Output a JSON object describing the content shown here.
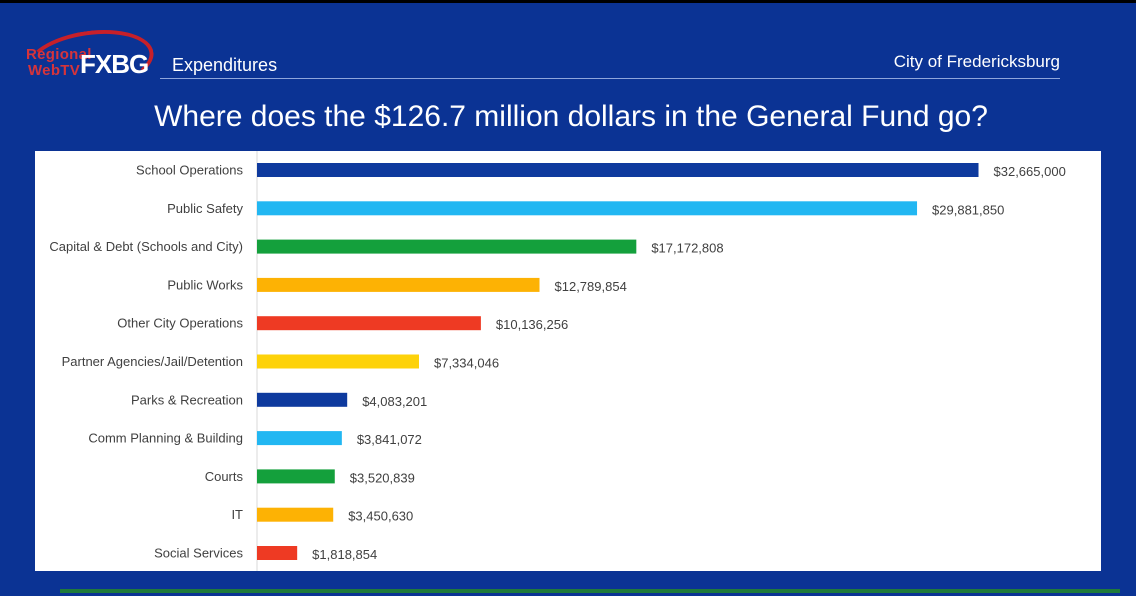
{
  "header": {
    "logo_line1": "Regional",
    "logo_line2": "WebTV",
    "logo_main": "FXBG",
    "section": "Expenditures",
    "city": "City of Fredericksburg"
  },
  "title": "Where does the $126.7 million dollars in the General Fund go?",
  "chart_data": {
    "type": "bar",
    "orientation": "horizontal",
    "title": "Where does the $126.7 million dollars in the General Fund go?",
    "xlabel": "",
    "ylabel": "",
    "grid": false,
    "legend": "none",
    "xlim": [
      0,
      34000000
    ],
    "categories": [
      "School Operations",
      "Public Safety",
      "Capital & Debt (Schools and City)",
      "Public Works",
      "Other City Operations",
      "Partner Agencies/Jail/Detention",
      "Parks & Recreation",
      "Comm Planning & Building",
      "Courts",
      "IT",
      "Social Services"
    ],
    "values": [
      32665000,
      29881850,
      17172808,
      12789854,
      10136256,
      7334046,
      4083201,
      3841072,
      3520839,
      3450630,
      1818854
    ],
    "labels": [
      "$32,665,000",
      "$29,881,850",
      "$17,172,808",
      "$12,789,854",
      "$10,136,256",
      "$7,334,046",
      "$4,083,201",
      "$3,841,072",
      "$3,520,839",
      "$3,450,630",
      "$1,818,854"
    ],
    "colors": [
      "#0e3a9e",
      "#22b7f2",
      "#14a03c",
      "#fdb204",
      "#ee3a23",
      "#fdd20a",
      "#0e3a9e",
      "#22b7f2",
      "#14a03c",
      "#fdb204",
      "#ee3a23"
    ]
  }
}
